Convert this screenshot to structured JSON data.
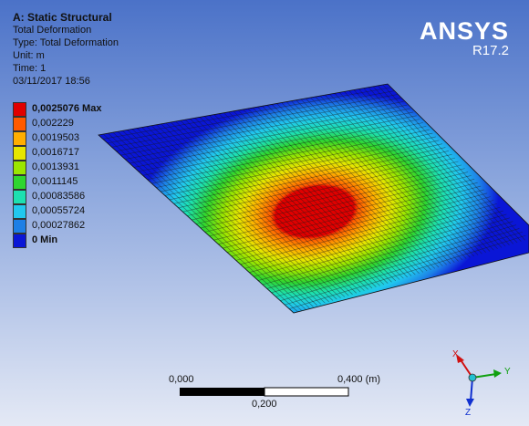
{
  "info": {
    "title": "A: Static Structural",
    "result": "Total Deformation",
    "type": "Type: Total Deformation",
    "unit": "Unit: m",
    "time": "Time: 1",
    "date": "03/11/2017 18:56"
  },
  "brand": {
    "name": "ANSYS",
    "version": "R17.2"
  },
  "legend": [
    {
      "label": "0,0025076 Max",
      "color": "#e00000",
      "bold": true
    },
    {
      "label": "0,002229",
      "color": "#ff5a00",
      "bold": false
    },
    {
      "label": "0,0019503",
      "color": "#ffae00",
      "bold": false
    },
    {
      "label": "0,0016717",
      "color": "#e6e600",
      "bold": false
    },
    {
      "label": "0,0013931",
      "color": "#9be600",
      "bold": false
    },
    {
      "label": "0,0011145",
      "color": "#2fd62f",
      "bold": false
    },
    {
      "label": "0,00083586",
      "color": "#1de0b0",
      "bold": false
    },
    {
      "label": "0,00055724",
      "color": "#21c8ee",
      "bold": false
    },
    {
      "label": "0,00027862",
      "color": "#1d7fe6",
      "bold": false
    },
    {
      "label": "0 Min",
      "color": "#0a16d6",
      "bold": true
    }
  ],
  "scalebar": {
    "left_label": "0,000",
    "right_label": "0,400 (m)",
    "mid_label": "0,200"
  },
  "triad": {
    "x": "X",
    "y": "Y",
    "z": "Z",
    "x_color": "#d01010",
    "y_color": "#10a010",
    "z_color": "#1030d0"
  }
}
